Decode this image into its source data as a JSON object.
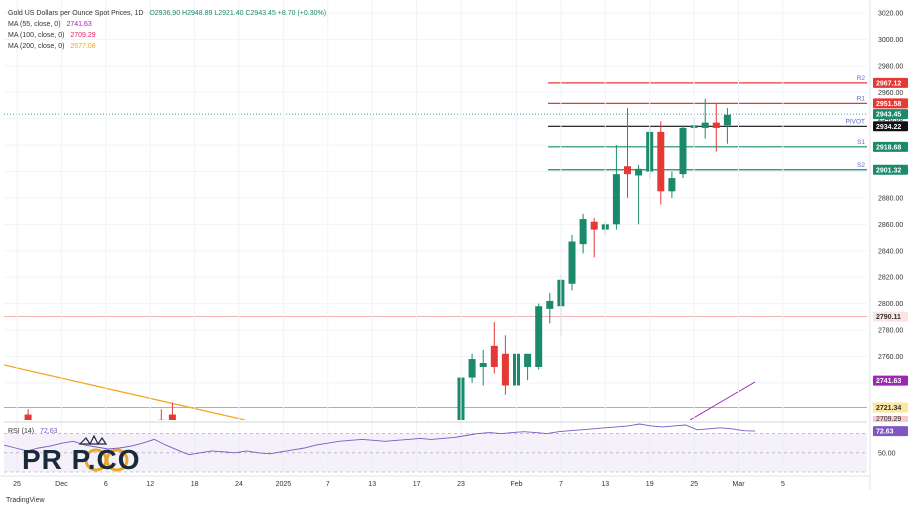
{
  "header": {
    "title": "Gold US Dollars per Ounce Spot Prices, 1D",
    "ohlc": "O2936.90  H2948.89  L2921.40  C2943.45  +8.70 (+0.30%)",
    "ma55": {
      "label": "MA (55, close, 0)",
      "value": "2741.63",
      "color": "#9c27b0"
    },
    "ma100": {
      "label": "MA (100, close, 0)",
      "value": "2709.29",
      "color": "#e91e63"
    },
    "ma200": {
      "label": "MA (200, close, 0)",
      "value": "2577.08",
      "color": "#f5a623"
    }
  },
  "logo": {
    "text": "PR P.CO"
  },
  "footer": {
    "brand": "TradingView"
  },
  "chart_data": {
    "type": "candlestick",
    "ylim": [
      2700,
      3020
    ],
    "y_ticks": [
      2740,
      2760,
      2780,
      2800,
      2820,
      2840,
      2860,
      2880,
      2900,
      2920,
      2940,
      2960,
      2980,
      3000,
      3020
    ],
    "y_tick_labels": [
      "2740.00",
      "2760.00",
      "2780.00",
      "2800.00",
      "2820.00",
      "2840.00",
      "2860.00",
      "2880.00",
      "2900.00",
      "2920.00",
      "2940.00",
      "2960.00",
      "2980.00",
      "3000.00",
      "3020.00"
    ],
    "x_labels": [
      {
        "text": "25",
        "i": 0
      },
      {
        "text": "Dec",
        "i": 4
      },
      {
        "text": "6",
        "i": 8
      },
      {
        "text": "12",
        "i": 12
      },
      {
        "text": "18",
        "i": 16
      },
      {
        "text": "24",
        "i": 20
      },
      {
        "text": "2025",
        "i": 24
      },
      {
        "text": "7",
        "i": 28
      },
      {
        "text": "13",
        "i": 32
      },
      {
        "text": "17",
        "i": 36
      },
      {
        "text": "23",
        "i": 40
      },
      {
        "text": "Feb",
        "i": 45
      },
      {
        "text": "7",
        "i": 49
      },
      {
        "text": "13",
        "i": 53
      },
      {
        "text": "19",
        "i": 57
      },
      {
        "text": "25",
        "i": 61
      },
      {
        "text": "Mar",
        "i": 65
      },
      {
        "text": "5",
        "i": 69
      }
    ],
    "candles": [
      {
        "i": 1,
        "o": 2716,
        "h": 2720,
        "l": 2700,
        "c": 2705
      },
      {
        "i": 13,
        "o": 2712,
        "h": 2720,
        "l": 2700,
        "c": 2705
      },
      {
        "i": 14,
        "o": 2716,
        "h": 2725,
        "l": 2700,
        "c": 2708
      },
      {
        "i": 37,
        "o": 2700,
        "h": 2712,
        "l": 2695,
        "c": 2705
      },
      {
        "i": 38,
        "o": 2708,
        "h": 2710,
        "l": 2695,
        "c": 2702
      },
      {
        "i": 40,
        "o": 2700,
        "h": 2750,
        "l": 2695,
        "c": 2744
      },
      {
        "i": 41,
        "o": 2744,
        "h": 2762,
        "l": 2740,
        "c": 2758
      },
      {
        "i": 42,
        "o": 2752,
        "h": 2765,
        "l": 2738,
        "c": 2755
      },
      {
        "i": 43,
        "o": 2768,
        "h": 2786,
        "l": 2747,
        "c": 2752
      },
      {
        "i": 44,
        "o": 2762,
        "h": 2776,
        "l": 2731,
        "c": 2738
      },
      {
        "i": 45,
        "o": 2738,
        "h": 2762,
        "l": 2735,
        "c": 2762
      },
      {
        "i": 46,
        "o": 2752,
        "h": 2762,
        "l": 2742,
        "c": 2762
      },
      {
        "i": 47,
        "o": 2752,
        "h": 2800,
        "l": 2750,
        "c": 2798
      },
      {
        "i": 48,
        "o": 2796,
        "h": 2808,
        "l": 2785,
        "c": 2802
      },
      {
        "i": 49,
        "o": 2798,
        "h": 2822,
        "l": 2775,
        "c": 2818
      },
      {
        "i": 50,
        "o": 2815,
        "h": 2852,
        "l": 2810,
        "c": 2847
      },
      {
        "i": 51,
        "o": 2845,
        "h": 2868,
        "l": 2838,
        "c": 2864
      },
      {
        "i": 52,
        "o": 2862,
        "h": 2865,
        "l": 2835,
        "c": 2856
      },
      {
        "i": 53,
        "o": 2856,
        "h": 2862,
        "l": 2852,
        "c": 2860
      },
      {
        "i": 54,
        "o": 2860,
        "h": 2920,
        "l": 2856,
        "c": 2898
      },
      {
        "i": 55,
        "o": 2904,
        "h": 2948,
        "l": 2880,
        "c": 2898
      },
      {
        "i": 56,
        "o": 2897,
        "h": 2905,
        "l": 2860,
        "c": 2902
      },
      {
        "i": 57,
        "o": 2900,
        "h": 2935,
        "l": 2895,
        "c": 2930
      },
      {
        "i": 58,
        "o": 2930,
        "h": 2938,
        "l": 2875,
        "c": 2885
      },
      {
        "i": 59,
        "o": 2885,
        "h": 2900,
        "l": 2880,
        "c": 2895
      },
      {
        "i": 60,
        "o": 2898,
        "h": 2935,
        "l": 2895,
        "c": 2933
      },
      {
        "i": 61,
        "o": 2933,
        "h": 2940,
        "l": 2918,
        "c": 2935
      },
      {
        "i": 62,
        "o": 2933,
        "h": 2955,
        "l": 2925,
        "c": 2937
      },
      {
        "i": 63,
        "o": 2937,
        "h": 2952,
        "l": 2915,
        "c": 2933
      },
      {
        "i": 64,
        "o": 2935,
        "h": 2948,
        "l": 2921,
        "c": 2943
      }
    ],
    "levels": [
      {
        "name": "R2",
        "value": 2967.12,
        "label": "2967.12",
        "color": "#e53935"
      },
      {
        "name": "R1",
        "value": 2951.58,
        "label": "2951.58",
        "color": "#e53935"
      },
      {
        "name": "PIVOT",
        "value": 2934.22,
        "label": "2934.22",
        "color": "#111111"
      },
      {
        "name": "S1",
        "value": 2918.68,
        "label": "2918.68",
        "color": "#1b8a6b"
      },
      {
        "name": "S2",
        "value": 2901.32,
        "label": "2901.32",
        "color": "#1b8a6b"
      }
    ],
    "price_last": {
      "value": 2943.45,
      "label": "2943.45",
      "color": "#1b8a6b"
    },
    "hline_pink": {
      "value": 2790.11,
      "label": "2790.11",
      "color": "#e57373"
    },
    "hline_orange": {
      "value": 2721.34,
      "label": "2721.34",
      "color": "#f5a623"
    },
    "ma55_last": {
      "value": 2741.63,
      "label": "2741.63",
      "color": "#9c27b0"
    },
    "ma100_last_label": "2709.29",
    "rsi": {
      "label": "RSI (14)",
      "value_label": "72.63",
      "ylim": [
        30,
        80
      ],
      "ticks": [
        50
      ],
      "tick_labels": [
        "50.00"
      ],
      "values": [
        58,
        55,
        52,
        55,
        57,
        60,
        62,
        58,
        56,
        54,
        55,
        57,
        60,
        64,
        58,
        53,
        48,
        50,
        52,
        51,
        50,
        52,
        50,
        49,
        51,
        53,
        55,
        58,
        60,
        62,
        63,
        64,
        63,
        62,
        63,
        64,
        65,
        64,
        65,
        66,
        68,
        70,
        71,
        70,
        71,
        72,
        71,
        70,
        72,
        73,
        74,
        75,
        76,
        77,
        78,
        80,
        78,
        77,
        78,
        79,
        74,
        75,
        76,
        75,
        73,
        72.63
      ]
    }
  }
}
